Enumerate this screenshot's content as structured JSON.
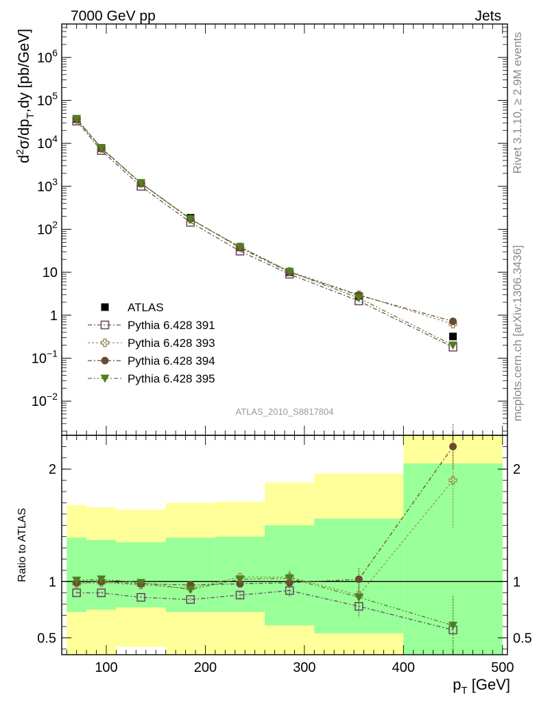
{
  "header": {
    "left": "7000 GeV pp",
    "right": "Jets"
  },
  "side_labels": {
    "rivet": "Rivet 3.1.10, ≥ 2.9M events",
    "mcplots": "mcplots.cern.ch [arXiv:1306.3436]"
  },
  "analysis_label": "ATLAS_2010_S8817804",
  "chart_data": [
    {
      "type": "scatter",
      "panel": "main",
      "xlabel_main": "p",
      "xlabel_sub": "T",
      "xlabel_unit": " [GeV]",
      "ylabel": "d²σ/dp_T,dy [pb/GeV]",
      "yscale": "log",
      "xlim": [
        55,
        505
      ],
      "ylim": [
        0.0016,
        6000000
      ],
      "x_ticks": [
        "100",
        "200",
        "300",
        "400",
        "500"
      ],
      "y_ticks": [
        {
          "value": 1000000,
          "base": "10",
          "exp": "6"
        },
        {
          "value": 100000,
          "base": "10",
          "exp": "5"
        },
        {
          "value": 10000,
          "base": "10",
          "exp": "4"
        },
        {
          "value": 1000,
          "base": "10",
          "exp": "3"
        },
        {
          "value": 100,
          "base": "10",
          "exp": "2"
        },
        {
          "value": 10,
          "base": "10",
          "exp": ""
        },
        {
          "value": 1,
          "base": "1",
          "exp": ""
        },
        {
          "value": 0.1,
          "base": "10",
          "exp": "−1"
        },
        {
          "value": 0.01,
          "base": "10",
          "exp": "−2"
        }
      ],
      "legend_position": "middle-left",
      "x": [
        70,
        95,
        135,
        185,
        235,
        285,
        355,
        450
      ],
      "series": [
        {
          "name": "ATLAS",
          "marker": "filled-square",
          "color": "#000000",
          "values": [
            37000,
            7800,
            1200,
            185,
            38,
            10,
            2.8,
            0.32
          ]
        },
        {
          "name": "Pythia 6.428 391",
          "marker": "open-square",
          "color": "#6b4a5f",
          "dash": "6,3,2,3",
          "values": [
            33000,
            6800,
            1000,
            145,
            31,
            9,
            2.15,
            0.18
          ]
        },
        {
          "name": "Pythia 6.428 393",
          "marker": "open-cross",
          "color": "#9c8c5a",
          "dash": "3,3",
          "values": [
            36000,
            7600,
            1170,
            170,
            39,
            10.5,
            3.0,
            0.62
          ]
        },
        {
          "name": "Pythia 6.428 394",
          "marker": "filled-circle",
          "color": "#6b4a2f",
          "dash": "6,3,2,3",
          "values": [
            37000,
            7700,
            1180,
            175,
            37,
            10,
            2.9,
            0.72
          ]
        },
        {
          "name": "Pythia 6.428 395",
          "marker": "filled-triangle-down",
          "color": "#4f7f1f",
          "dash": "6,3,2,3,2,3",
          "values": [
            37500,
            7900,
            1190,
            172,
            39,
            10.3,
            2.5,
            0.2
          ]
        }
      ]
    },
    {
      "type": "scatter",
      "panel": "ratio",
      "ylabel": "Ratio to ATLAS",
      "xlim": [
        55,
        505
      ],
      "ylim": [
        0.35,
        2.3
      ],
      "y_ticks": [
        "0.5",
        "1",
        "2"
      ],
      "bands": {
        "x_edges": [
          60,
          80,
          110,
          160,
          210,
          260,
          310,
          400,
          500
        ],
        "yellow_low": [
          0.35,
          0.35,
          0.42,
          0.35,
          0.35,
          0.35,
          0.35,
          0.35
        ],
        "yellow_high": [
          1.68,
          1.66,
          1.64,
          1.7,
          1.71,
          1.88,
          1.96,
          2.3
        ],
        "green_low": [
          0.73,
          0.75,
          0.77,
          0.73,
          0.73,
          0.61,
          0.54,
          0.35
        ],
        "green_high": [
          1.39,
          1.37,
          1.35,
          1.39,
          1.4,
          1.5,
          1.56,
          2.05
        ]
      },
      "x": [
        70,
        95,
        135,
        185,
        235,
        285,
        355,
        450
      ],
      "series": [
        {
          "name": "Pythia 6.428 391",
          "values": [
            0.9,
            0.9,
            0.86,
            0.84,
            0.88,
            0.92,
            0.78,
            0.57
          ],
          "err": [
            0.01,
            0.01,
            0.01,
            0.015,
            0.03,
            0.06,
            0.1,
            0.3
          ]
        },
        {
          "name": "Pythia 6.428 393",
          "values": [
            0.98,
            0.99,
            0.97,
            0.94,
            1.04,
            1.04,
            0.88,
            1.9
          ],
          "err": [
            0.01,
            0.01,
            0.01,
            0.02,
            0.04,
            0.06,
            0.1,
            0.42
          ]
        },
        {
          "name": "Pythia 6.428 394",
          "values": [
            0.99,
            1.0,
            0.98,
            0.97,
            0.98,
            0.99,
            1.02,
            2.2
          ],
          "err": [
            0.01,
            0.01,
            0.01,
            0.02,
            0.03,
            0.05,
            0.1,
            0.2
          ]
        },
        {
          "name": "Pythia 6.428 395",
          "values": [
            1.01,
            1.02,
            0.99,
            0.93,
            1.02,
            1.03,
            0.86,
            0.61
          ],
          "err": [
            0.01,
            0.01,
            0.01,
            0.02,
            0.03,
            0.06,
            0.1,
            0.26
          ]
        }
      ]
    }
  ]
}
